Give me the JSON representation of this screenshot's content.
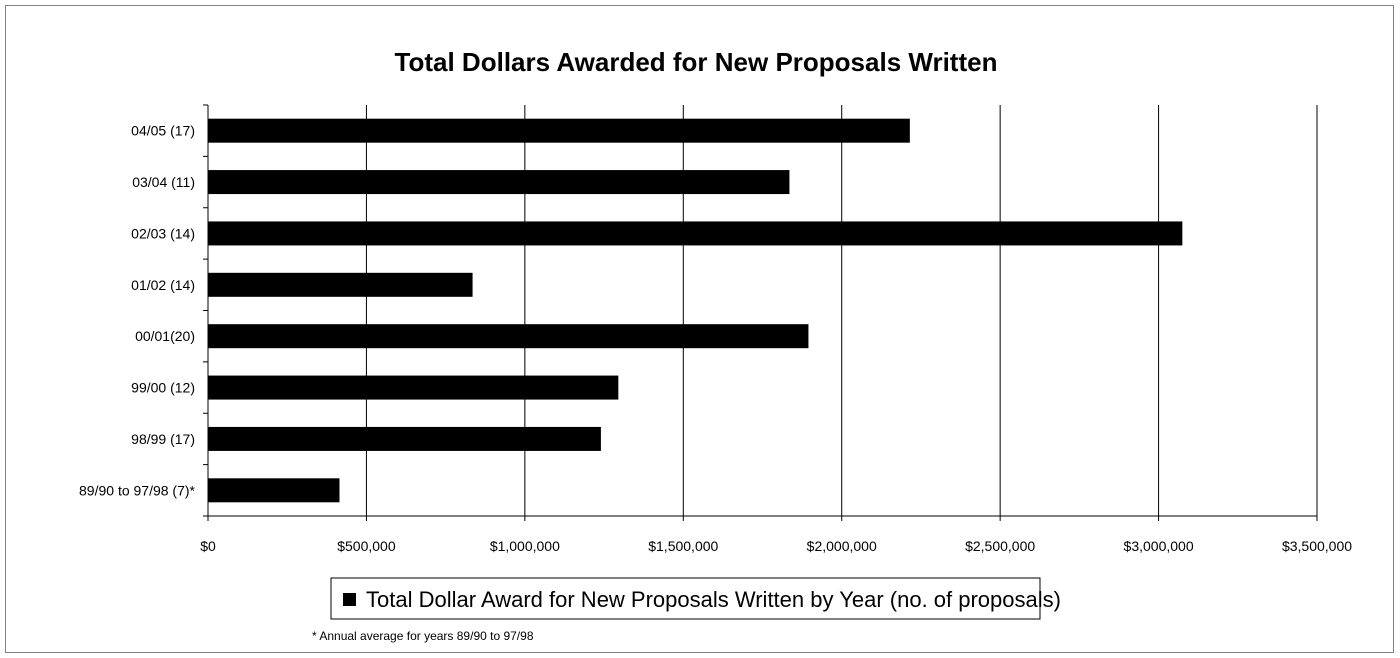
{
  "chart_data": {
    "type": "bar",
    "orientation": "horizontal",
    "title": "Total Dollars Awarded for New  Proposals Written",
    "categories": [
      "04/05 (17)",
      "03/04 (11)",
      "02/03 (14)",
      "01/02 (14)",
      "00/01(20)",
      "99/00 (12)",
      "98/99 (17)",
      "89/90 to 97/98 (7)*"
    ],
    "series": [
      {
        "name": "Total Dollar Award for  New Proposals Written by Year (no. of proposals)",
        "values": [
          2215000,
          1835000,
          3075000,
          835000,
          1895000,
          1295000,
          1240000,
          415000
        ]
      }
    ],
    "xlim": [
      0,
      3500000
    ],
    "xticks": [
      0,
      500000,
      1000000,
      1500000,
      2000000,
      2500000,
      3000000,
      3500000
    ],
    "xtick_labels": [
      "$0",
      "$500,000",
      "$1,000,000",
      "$1,500,000",
      "$2,000,000",
      "$2,500,000",
      "$3,000,000",
      "$3,500,000"
    ],
    "grid": "vertical gridlines",
    "legend_position": "bottom",
    "bar_color": "#000000",
    "footnote": "* Annual average for years 89/90 to 97/98"
  }
}
